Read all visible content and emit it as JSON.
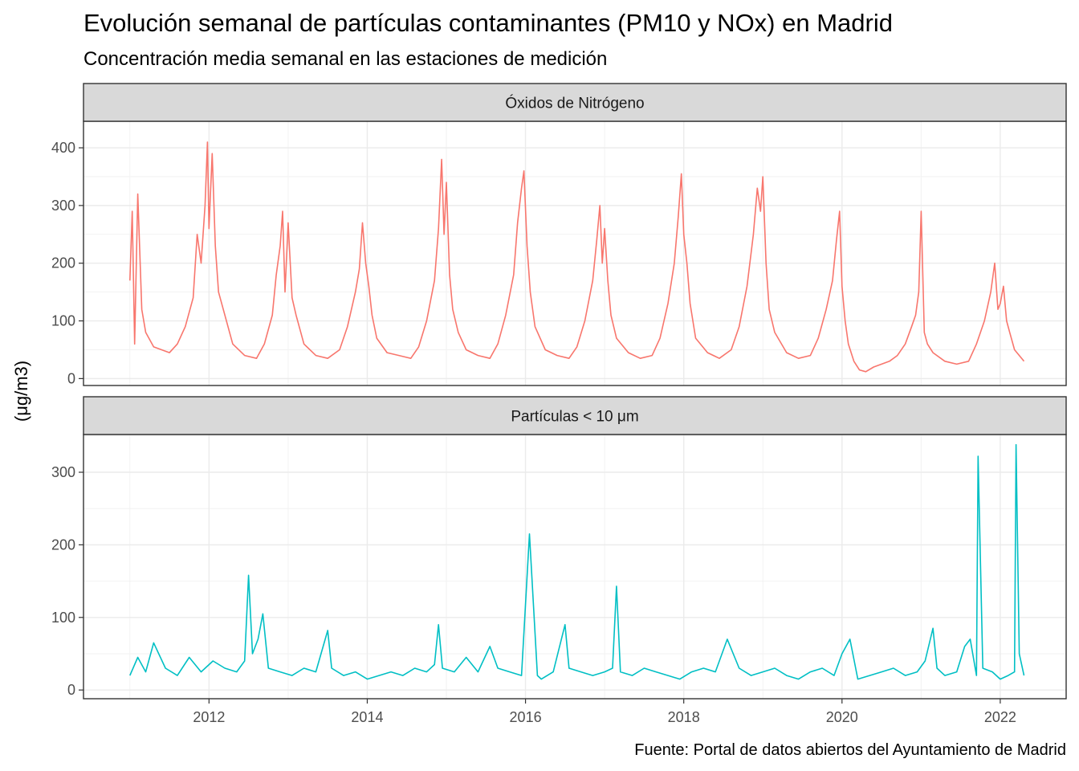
{
  "title": "Evolución semanal de partículas contaminantes (PM10 y NOx) en Madrid",
  "subtitle": "Concentración media semanal en las estaciones de medición",
  "caption": "Fuente: Portal de datos abiertos del Ayuntamiento de Madrid",
  "chart_data": {
    "type": "line",
    "ylabel": "(μg/m3)",
    "xlabel": "",
    "grid": true,
    "legend": "none",
    "x_range": [
      "2010-06-01",
      "2022-11-01"
    ],
    "x_ticks": [
      "2012",
      "2014",
      "2016",
      "2018",
      "2020",
      "2022"
    ],
    "panels": [
      {
        "name": "Óxidos de Nitrógeno",
        "color": "#F8766D",
        "ylim": [
          -12,
          446
        ],
        "y_ticks": [
          0,
          100,
          200,
          300,
          400
        ],
        "x": [
          2011.0,
          2011.03,
          2011.06,
          2011.1,
          2011.15,
          2011.2,
          2011.3,
          2011.4,
          2011.5,
          2011.6,
          2011.7,
          2011.8,
          2011.85,
          2011.9,
          2011.95,
          2011.98,
          2012.0,
          2012.04,
          2012.08,
          2012.12,
          2012.2,
          2012.3,
          2012.45,
          2012.6,
          2012.7,
          2012.8,
          2012.85,
          2012.9,
          2012.93,
          2012.96,
          2013.0,
          2013.05,
          2013.1,
          2013.2,
          2013.35,
          2013.5,
          2013.65,
          2013.75,
          2013.85,
          2013.9,
          2013.94,
          2013.98,
          2014.02,
          2014.06,
          2014.12,
          2014.25,
          2014.4,
          2014.55,
          2014.65,
          2014.75,
          2014.85,
          2014.9,
          2014.94,
          2014.97,
          2015.0,
          2015.04,
          2015.08,
          2015.15,
          2015.25,
          2015.4,
          2015.55,
          2015.65,
          2015.75,
          2015.85,
          2015.9,
          2015.95,
          2015.98,
          2016.02,
          2016.06,
          2016.12,
          2016.25,
          2016.4,
          2016.55,
          2016.65,
          2016.75,
          2016.85,
          2016.9,
          2016.94,
          2016.97,
          2017.0,
          2017.04,
          2017.08,
          2017.15,
          2017.3,
          2017.45,
          2017.6,
          2017.7,
          2017.8,
          2017.88,
          2017.93,
          2017.97,
          2018.0,
          2018.04,
          2018.08,
          2018.15,
          2018.3,
          2018.45,
          2018.6,
          2018.7,
          2018.8,
          2018.88,
          2018.93,
          2018.97,
          2019.0,
          2019.04,
          2019.08,
          2019.15,
          2019.3,
          2019.45,
          2019.6,
          2019.7,
          2019.8,
          2019.88,
          2019.93,
          2019.97,
          2020.0,
          2020.04,
          2020.08,
          2020.15,
          2020.22,
          2020.3,
          2020.4,
          2020.5,
          2020.6,
          2020.7,
          2020.8,
          2020.88,
          2020.93,
          2020.97,
          2021.0,
          2021.04,
          2021.08,
          2021.15,
          2021.3,
          2021.45,
          2021.6,
          2021.7,
          2021.8,
          2021.88,
          2021.93,
          2021.97,
          2022.0,
          2022.04,
          2022.08,
          2022.12,
          2022.18,
          2022.24,
          2022.3
        ],
        "y": [
          170,
          290,
          60,
          320,
          120,
          80,
          55,
          50,
          45,
          60,
          90,
          140,
          250,
          200,
          300,
          410,
          260,
          390,
          230,
          150,
          110,
          60,
          40,
          35,
          60,
          110,
          180,
          230,
          290,
          150,
          270,
          140,
          110,
          60,
          40,
          35,
          50,
          90,
          150,
          190,
          270,
          200,
          160,
          110,
          70,
          45,
          40,
          35,
          55,
          100,
          170,
          260,
          380,
          250,
          340,
          180,
          120,
          80,
          50,
          40,
          35,
          60,
          110,
          180,
          270,
          330,
          360,
          230,
          150,
          90,
          50,
          40,
          35,
          55,
          100,
          170,
          240,
          300,
          200,
          260,
          170,
          110,
          70,
          45,
          35,
          40,
          70,
          130,
          200,
          280,
          355,
          250,
          200,
          130,
          70,
          45,
          35,
          50,
          90,
          160,
          250,
          330,
          290,
          350,
          200,
          120,
          80,
          45,
          35,
          40,
          70,
          120,
          170,
          240,
          290,
          160,
          100,
          60,
          30,
          15,
          12,
          20,
          25,
          30,
          40,
          60,
          90,
          110,
          150,
          290,
          80,
          60,
          45,
          30,
          25,
          30,
          60,
          100,
          150,
          200,
          120,
          130,
          160,
          100,
          80,
          50,
          40,
          30
        ]
      },
      {
        "name": "Partículas < 10 μm",
        "color": "#00BFC4",
        "ylim": [
          -12,
          352
        ],
        "y_ticks": [
          0,
          100,
          200,
          300
        ],
        "x": [
          2011.0,
          2011.1,
          2011.2,
          2011.3,
          2011.45,
          2011.6,
          2011.75,
          2011.9,
          2012.05,
          2012.2,
          2012.35,
          2012.45,
          2012.5,
          2012.55,
          2012.62,
          2012.68,
          2012.75,
          2012.9,
          2013.05,
          2013.2,
          2013.35,
          2013.5,
          2013.55,
          2013.7,
          2013.85,
          2014.0,
          2014.15,
          2014.3,
          2014.45,
          2014.6,
          2014.75,
          2014.85,
          2014.9,
          2014.95,
          2015.1,
          2015.25,
          2015.4,
          2015.55,
          2015.65,
          2015.8,
          2015.95,
          2016.05,
          2016.15,
          2016.2,
          2016.35,
          2016.5,
          2016.55,
          2016.7,
          2016.85,
          2017.0,
          2017.1,
          2017.15,
          2017.2,
          2017.35,
          2017.5,
          2017.65,
          2017.8,
          2017.95,
          2018.1,
          2018.25,
          2018.4,
          2018.55,
          2018.7,
          2018.85,
          2019.0,
          2019.15,
          2019.3,
          2019.45,
          2019.6,
          2019.75,
          2019.9,
          2020.0,
          2020.1,
          2020.2,
          2020.35,
          2020.5,
          2020.65,
          2020.8,
          2020.95,
          2021.05,
          2021.15,
          2021.2,
          2021.3,
          2021.45,
          2021.55,
          2021.62,
          2021.7,
          2021.72,
          2021.78,
          2021.9,
          2022.0,
          2022.1,
          2022.18,
          2022.2,
          2022.24,
          2022.3
        ],
        "y": [
          20,
          45,
          25,
          65,
          30,
          20,
          45,
          25,
          40,
          30,
          25,
          40,
          158,
          50,
          70,
          105,
          30,
          25,
          20,
          30,
          25,
          82,
          30,
          20,
          25,
          15,
          20,
          25,
          20,
          30,
          25,
          35,
          90,
          30,
          25,
          45,
          25,
          60,
          30,
          25,
          20,
          215,
          20,
          15,
          25,
          90,
          30,
          25,
          20,
          25,
          30,
          143,
          25,
          20,
          30,
          25,
          20,
          15,
          25,
          30,
          25,
          70,
          30,
          20,
          25,
          30,
          20,
          15,
          25,
          30,
          20,
          50,
          70,
          15,
          20,
          25,
          30,
          20,
          25,
          40,
          85,
          30,
          20,
          25,
          60,
          70,
          20,
          322,
          30,
          25,
          15,
          20,
          25,
          338,
          50,
          20
        ]
      }
    ]
  }
}
